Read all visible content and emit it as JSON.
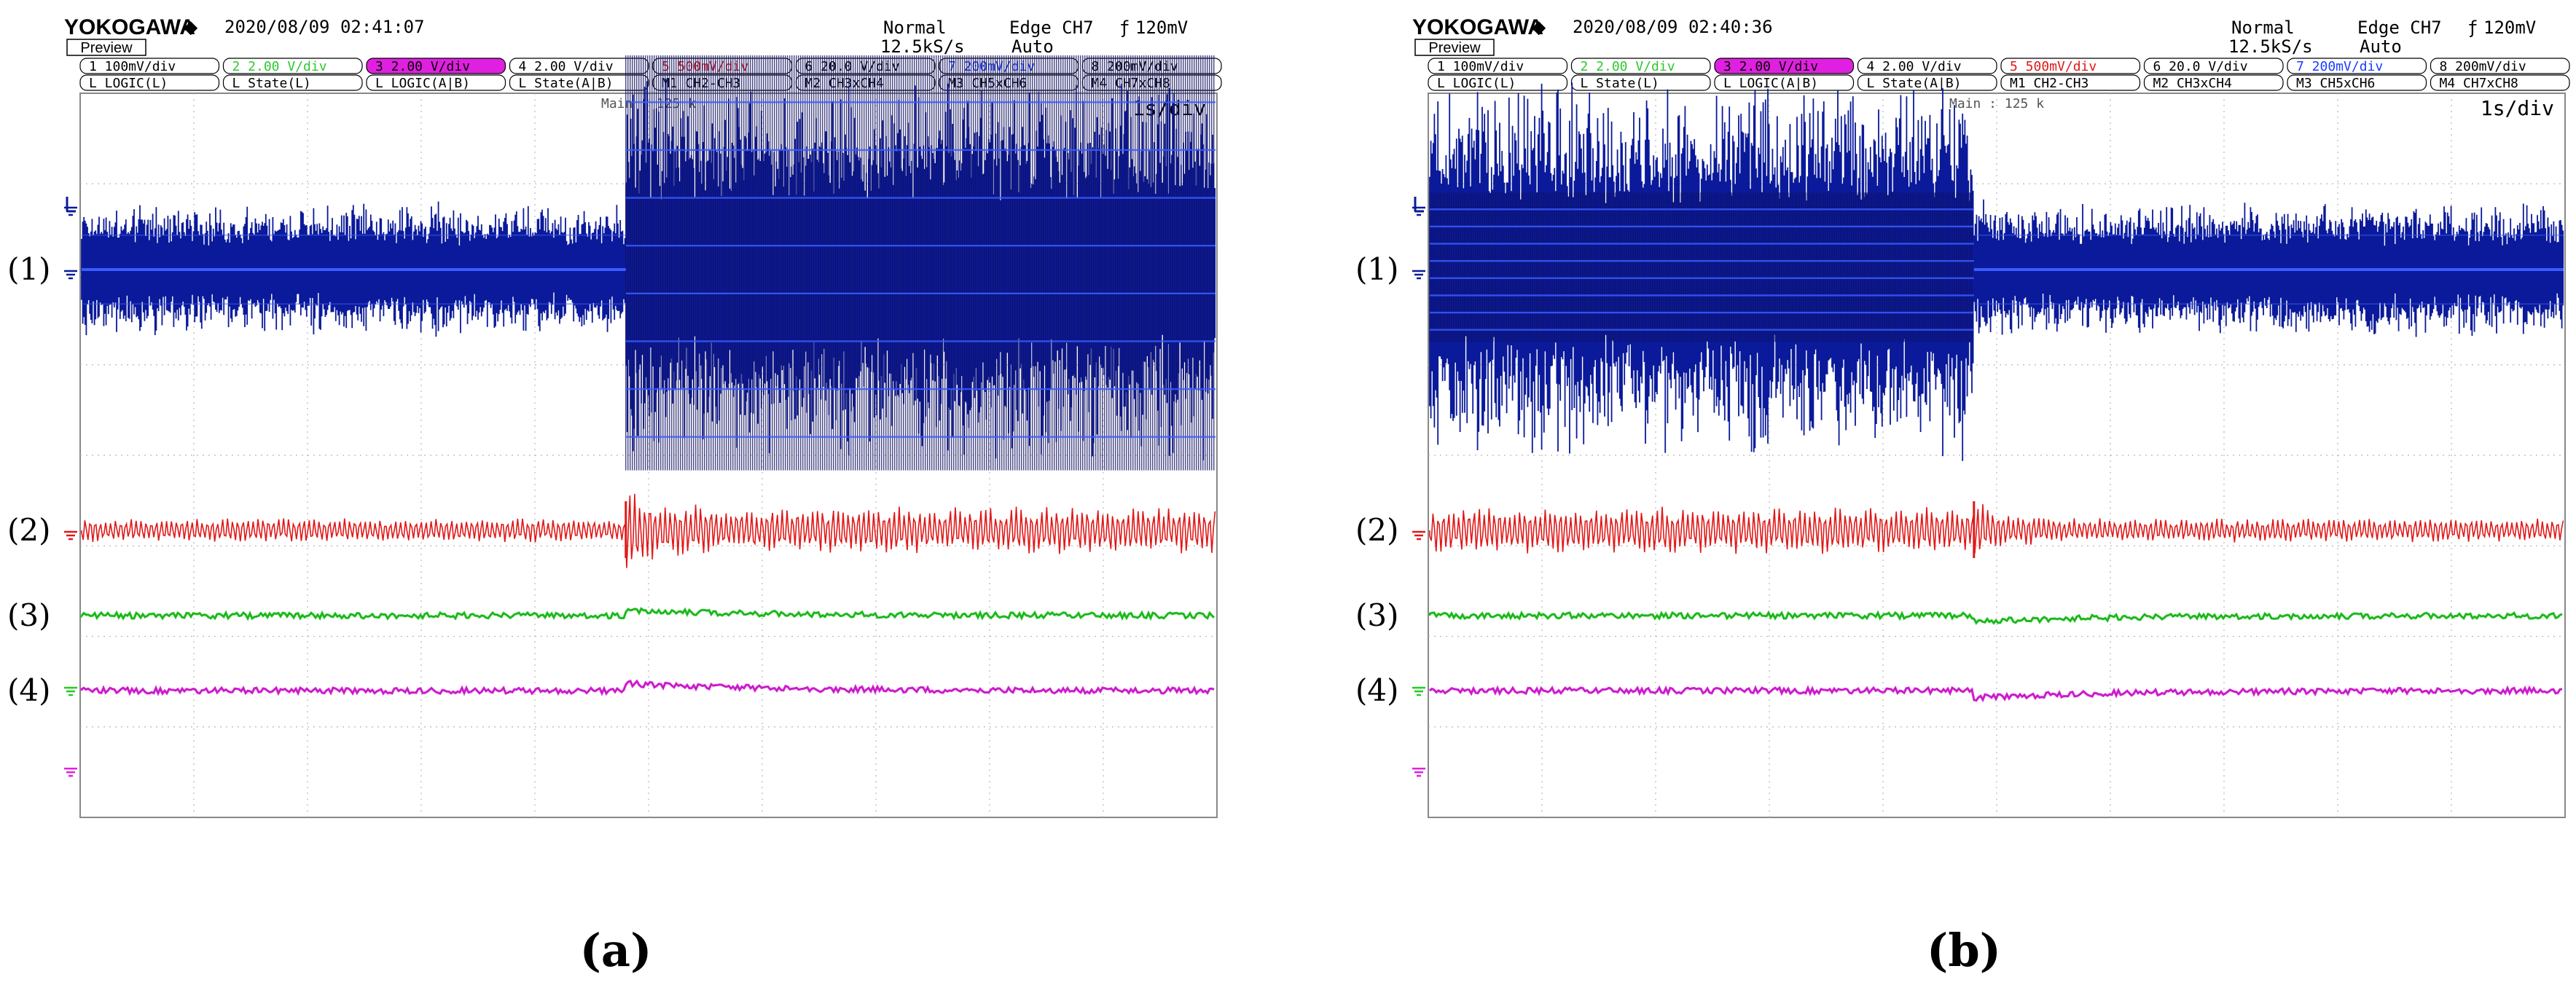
{
  "colors": {
    "ch1": "#0a1a9a",
    "ch1_bright": "#3a5cff",
    "ch2": "#e01818",
    "ch3": "#22cc22",
    "ch4": "#e020e0",
    "header_ch2": "#2ec82e",
    "header_ch3_fill": "#e020e0",
    "header_ch5": "#e01818",
    "header_ch7": "#1a3cff",
    "grid": "#b8b8b8",
    "frame": "#888888"
  },
  "panels": [
    {
      "id": "a",
      "caption": "(a)",
      "brand": "YOKOGAWA",
      "brand_symbol": "◆",
      "timestamp": "2020/08/09 02:41:07",
      "preview": "Preview",
      "mode": "Normal",
      "sample_rate": "12.5kS/s",
      "trigger_type": "Edge CH7",
      "trigger_slope": "ƒ",
      "trigger_level": "120mV",
      "trigger_mode": "Auto",
      "main_label": "Main : 125 k",
      "timebase": "1s/div",
      "row1": [
        {
          "text": "1  100mV/div",
          "style": "normal"
        },
        {
          "text": "2  2.00 V/div",
          "style": "green"
        },
        {
          "text": "3  2.00 V/div",
          "style": "magenta"
        },
        {
          "text": "4  2.00 V/div",
          "style": "normal"
        },
        {
          "text": "5  500mV/div",
          "style": "red"
        },
        {
          "text": "6  20.0 V/div",
          "style": "normal"
        },
        {
          "text": "7  200mV/div",
          "style": "blue"
        },
        {
          "text": "8  200mV/div",
          "style": "normal"
        }
      ],
      "row2": [
        "L  LOGIC(L)",
        "L  State(L)",
        "L  LOGIC(A|B)",
        "L  State(A|B)",
        "M1 CH2-CH3",
        "M2 CH3xCH4",
        "M3 CH5xCH6",
        "M4 CH7xCH8"
      ]
    },
    {
      "id": "b",
      "caption": "(b)",
      "brand": "YOKOGAWA",
      "brand_symbol": "◆",
      "timestamp": "2020/08/09 02:40:36",
      "preview": "Preview",
      "mode": "Normal",
      "sample_rate": "12.5kS/s",
      "trigger_type": "Edge CH7",
      "trigger_slope": "ƒ",
      "trigger_level": "120mV",
      "trigger_mode": "Auto",
      "main_label": "Main : 125 k",
      "timebase": "1s/div",
      "row1": [
        {
          "text": "1  100mV/div",
          "style": "normal"
        },
        {
          "text": "2  2.00 V/div",
          "style": "green"
        },
        {
          "text": "3  2.00 V/div",
          "style": "magenta"
        },
        {
          "text": "4  2.00 V/div",
          "style": "normal"
        },
        {
          "text": "5  500mV/div",
          "style": "red"
        },
        {
          "text": "6  20.0 V/div",
          "style": "normal"
        },
        {
          "text": "7  200mV/div",
          "style": "blue"
        },
        {
          "text": "8  200mV/div",
          "style": "normal"
        }
      ],
      "row2": [
        "L  LOGIC(L)",
        "L  State(L)",
        "L  LOGIC(A|B)",
        "L  State(A|B)",
        "M1 CH2-CH3",
        "M2 CH3xCH4",
        "M3 CH5xCH6",
        "M4 CH7xCH8"
      ]
    }
  ],
  "chart_data": [
    {
      "type": "line",
      "panel": "a",
      "x_unit_per_div": "1s/div",
      "x_range": [
        0,
        10
      ],
      "divisions": {
        "x": 10,
        "y": 8
      },
      "step_time": 4.8,
      "series": [
        {
          "name": "(1)",
          "color": "ch1",
          "before_amplitude": 0.9,
          "after_amplitude": 2.5
        },
        {
          "name": "(2)",
          "color": "ch2",
          "before_amplitude": 0.18,
          "after_amplitude": 0.35
        },
        {
          "name": "(3)",
          "color": "ch3",
          "before_amplitude": 0.05,
          "after_amplitude": 0.05
        },
        {
          "name": "(4)",
          "color": "ch4",
          "before_amplitude": 0.04,
          "after_amplitude": 0.04
        }
      ]
    },
    {
      "type": "line",
      "panel": "b",
      "x_unit_per_div": "1s/div",
      "x_range": [
        0,
        10
      ],
      "divisions": {
        "x": 10,
        "y": 8
      },
      "step_time": 4.8,
      "series": [
        {
          "name": "(1)",
          "color": "ch1",
          "before_amplitude": 2.5,
          "after_amplitude": 0.9
        },
        {
          "name": "(2)",
          "color": "ch2",
          "before_amplitude": 0.35,
          "after_amplitude": 0.18
        },
        {
          "name": "(3)",
          "color": "ch3",
          "before_amplitude": 0.05,
          "after_amplitude": 0.05
        },
        {
          "name": "(4)",
          "color": "ch4",
          "before_amplitude": 0.04,
          "after_amplitude": 0.04
        }
      ]
    }
  ]
}
